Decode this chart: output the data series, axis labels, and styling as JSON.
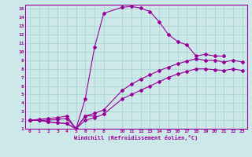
{
  "xlabel": "Windchill (Refroidissement éolien,°C)",
  "bg_color": "#cce8e8",
  "line_color": "#990099",
  "grid_color": "#aad4d4",
  "xlim": [
    -0.5,
    23.5
  ],
  "ylim": [
    1,
    15.5
  ],
  "xticks": [
    0,
    1,
    2,
    3,
    4,
    5,
    6,
    7,
    8,
    10,
    11,
    12,
    13,
    14,
    15,
    16,
    17,
    18,
    19,
    20,
    21,
    22,
    23
  ],
  "yticks": [
    1,
    2,
    3,
    4,
    5,
    6,
    7,
    8,
    9,
    10,
    11,
    12,
    13,
    14,
    15
  ],
  "series1_x": [
    0,
    1,
    2,
    3,
    4,
    5,
    6,
    7,
    8,
    10,
    11,
    12,
    13,
    14,
    15,
    16,
    17,
    18,
    19,
    20,
    21
  ],
  "series1_y": [
    2,
    2,
    1.8,
    1.7,
    1.6,
    1.0,
    4.5,
    10.5,
    14.5,
    15.2,
    15.3,
    15.1,
    14.7,
    13.5,
    12.0,
    11.2,
    10.8,
    9.5,
    9.7,
    9.5,
    9.5
  ],
  "series2_x": [
    0,
    1,
    2,
    3,
    4,
    5,
    6,
    7
  ],
  "series2_y": [
    2,
    2,
    1.8,
    1.7,
    1.6,
    1.0,
    2.5,
    2.5
  ],
  "series3_x": [
    0,
    1,
    2,
    3,
    4,
    5,
    6,
    7,
    8,
    10,
    11,
    12,
    13,
    14,
    15,
    16,
    17,
    18,
    19,
    20,
    21,
    22,
    23
  ],
  "series3_y": [
    2,
    2.1,
    2.2,
    2.3,
    2.5,
    1.0,
    2.5,
    2.8,
    3.2,
    5.5,
    6.2,
    6.8,
    7.3,
    7.8,
    8.2,
    8.6,
    8.9,
    9.2,
    9.0,
    9.0,
    8.8,
    9.0,
    8.8
  ],
  "series4_x": [
    0,
    1,
    2,
    3,
    4,
    5,
    6,
    7,
    8,
    10,
    11,
    12,
    13,
    14,
    15,
    16,
    17,
    18,
    19,
    20,
    21,
    22,
    23
  ],
  "series4_y": [
    2,
    2.0,
    2.0,
    2.1,
    2.2,
    1.0,
    2.0,
    2.3,
    2.7,
    4.5,
    5.0,
    5.5,
    6.0,
    6.5,
    7.0,
    7.4,
    7.7,
    8.0,
    8.0,
    7.9,
    7.8,
    8.0,
    7.8
  ]
}
